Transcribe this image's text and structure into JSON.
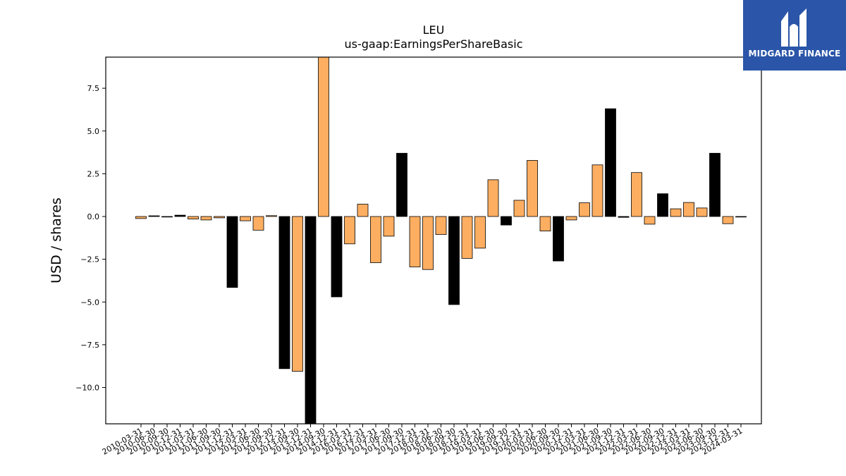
{
  "brand": {
    "name": "MIDGARD FINANCE",
    "background": "#2a55a8"
  },
  "chart_data": {
    "type": "bar",
    "title": "LEU",
    "subtitle": "us-gaap:EarningsPerShareBasic",
    "xlabel": "",
    "ylabel": "USD / shares",
    "ylim": [
      -12.1,
      9.35
    ],
    "yticks": [
      7.5,
      5.0,
      2.5,
      0.0,
      -2.5,
      -5.0,
      -7.5,
      -10.0
    ],
    "ytick_labels": [
      "7.5",
      "5.0",
      "2.5",
      "0.0",
      "−2.5",
      "−5.0",
      "−7.5",
      "−10.0"
    ],
    "grid": false,
    "legend": "none",
    "colors": {
      "quarter": "#fdae61",
      "annual": "#000000"
    },
    "categories": [
      "2010-03-31",
      "2010-06-30",
      "2010-09-30",
      "2010-12-31",
      "2011-03-31",
      "2011-06-30",
      "2011-09-30",
      "2011-12-31",
      "2012-03-31",
      "2012-06-30",
      "2012-09-30",
      "2012-12-31",
      "2013-09-30",
      "2013-12-31",
      "2014-09-30",
      "2014-12-31",
      "2016-03-31",
      "2016-12-31",
      "2017-03-31",
      "2017-06-30",
      "2017-09-30",
      "2017-12-31",
      "2018-03-31",
      "2018-06-30",
      "2018-09-30",
      "2018-12-31",
      "2019-03-31",
      "2019-06-30",
      "2019-09-30",
      "2019-12-31",
      "2020-03-31",
      "2020-06-30",
      "2020-09-30",
      "2020-12-31",
      "2021-03-31",
      "2021-06-30",
      "2021-09-30",
      "2021-12-31",
      "2022-03-31",
      "2022-06-30",
      "2022-09-30",
      "2022-12-31",
      "2023-03-31",
      "2023-06-30",
      "2023-09-30",
      "2023-12-31",
      "2024-03-31"
    ],
    "values": [
      -0.12,
      0.04,
      -0.03,
      0.08,
      -0.15,
      -0.2,
      -0.08,
      -4.15,
      -0.25,
      -0.8,
      0.05,
      -8.9,
      -9.05,
      -12.1,
      9.35,
      -4.7,
      -1.6,
      0.72,
      -2.7,
      -1.15,
      3.7,
      -2.95,
      -3.1,
      -1.05,
      -5.15,
      -2.45,
      -1.85,
      2.15,
      -0.5,
      0.95,
      3.28,
      -0.85,
      -2.6,
      -0.2,
      0.8,
      3.02,
      6.3,
      -0.05,
      2.57,
      -0.45,
      1.33,
      0.45,
      0.82,
      0.5,
      3.7,
      -0.42,
      0
    ],
    "is_annual": [
      false,
      true,
      false,
      true,
      false,
      false,
      false,
      true,
      false,
      false,
      false,
      true,
      false,
      true,
      false,
      true,
      false,
      false,
      false,
      false,
      true,
      false,
      false,
      false,
      true,
      false,
      false,
      false,
      true,
      false,
      false,
      false,
      true,
      false,
      false,
      false,
      true,
      true,
      false,
      false,
      true,
      false,
      false,
      false,
      true,
      false,
      false
    ]
  }
}
